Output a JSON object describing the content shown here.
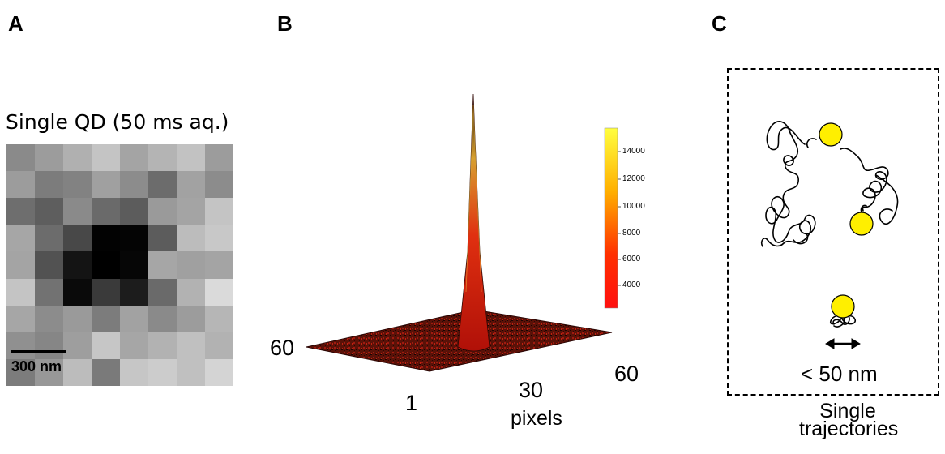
{
  "panels": {
    "a": {
      "letter": "A",
      "title": "Single QD (50 ms aq.)",
      "scale_label": "300 nm"
    },
    "b": {
      "letter": "B",
      "axis_60_left": "60",
      "axis_1": "1",
      "axis_30": "30",
      "axis_60_right": "60",
      "axis_unit": "pixels",
      "colorbar_ticks": [
        "14000",
        "12000",
        "10000",
        "8000",
        "6000",
        "4000"
      ]
    },
    "c": {
      "letter": "C",
      "distance_label": "< 50 nm",
      "caption_line1": "Single",
      "caption_line2": "trajectories"
    }
  },
  "pixel_grid_gray": [
    [
      "#8a8a8a",
      "#9c9c9c",
      "#b0b0b0",
      "#c4c4c4",
      "#a4a4a4",
      "#b4b4b4",
      "#c2c2c2",
      "#9c9c9c"
    ],
    [
      "#9c9c9c",
      "#7c7c7c",
      "#828282",
      "#a0a0a0",
      "#8c8c8c",
      "#6c6c6c",
      "#a2a2a2",
      "#8c8c8c"
    ],
    [
      "#6e6e6e",
      "#5e5e5e",
      "#8a8a8a",
      "#6a6a6a",
      "#5c5c5c",
      "#9a9a9a",
      "#a4a4a4",
      "#c4c4c4"
    ],
    [
      "#a6a6a6",
      "#6c6c6c",
      "#484848",
      "#020202",
      "#040404",
      "#5c5c5c",
      "#bcbcbc",
      "#c8c8c8"
    ],
    [
      "#a4a4a4",
      "#525252",
      "#141414",
      "#000000",
      "#060606",
      "#a6a6a6",
      "#a0a0a0",
      "#a4a4a4"
    ],
    [
      "#c4c4c4",
      "#727272",
      "#0a0a0a",
      "#3a3a3a",
      "#1c1c1c",
      "#6a6a6a",
      "#b2b2b2",
      "#dadada"
    ],
    [
      "#a6a6a6",
      "#8c8c8c",
      "#9a9a9a",
      "#7c7c7c",
      "#a2a2a2",
      "#8a8a8a",
      "#9c9c9c",
      "#b6b6b6"
    ],
    [
      "#909090",
      "#868686",
      "#9e9e9e",
      "#c6c6c6",
      "#a6a6a6",
      "#b2b2b2",
      "#c0c0c0",
      "#b2b2b2"
    ],
    [
      "#7c7c7c",
      "#989898",
      "#bcbcbc",
      "#7a7a7a",
      "#c6c6c6",
      "#cccccc",
      "#c0c0c0",
      "#d4d4d4"
    ]
  ],
  "colors": {
    "qd_yellow": "#ffef00",
    "peak_red": "#d41010",
    "floor_dark": "#3a0a08"
  }
}
